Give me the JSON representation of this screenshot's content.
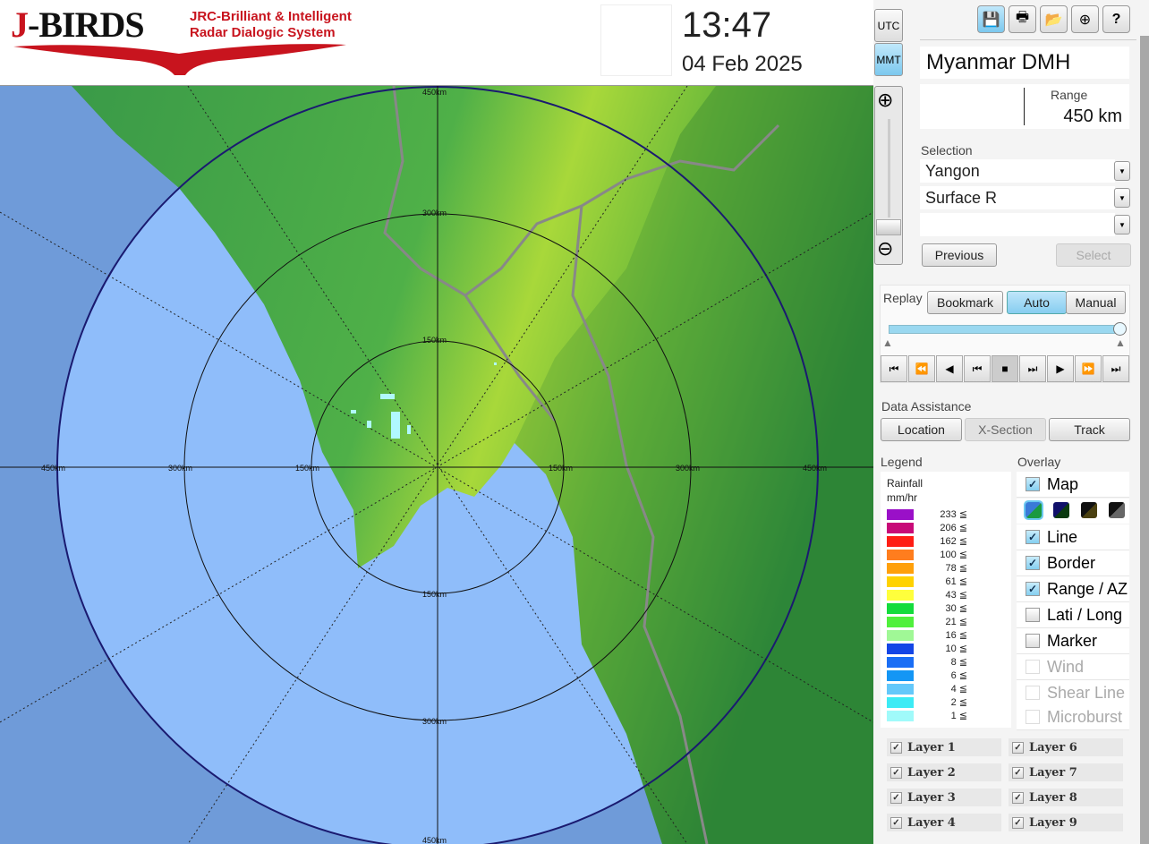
{
  "header": {
    "logo_main": "J-BIRDS",
    "logo_j": "J",
    "logo_rest": "-BIRDS",
    "logo_sub1": "JRC-Brilliant & Intelligent",
    "logo_sub2": "Radar Dialogic System",
    "time": "13:47",
    "date": "04 Feb 2025",
    "tz_utc": "UTC",
    "tz_mmt": "MMT",
    "tz_active": "MMT"
  },
  "toolbar": {
    "icons": [
      "save-icon",
      "print-icon",
      "folder-open-icon",
      "add-window-icon",
      "help-icon"
    ],
    "help_label": "?"
  },
  "station": {
    "name": "Myanmar DMH",
    "range_label": "Range",
    "range_value": "450 km"
  },
  "selection": {
    "label": "Selection",
    "site": "Yangon",
    "product": "Surface R",
    "third": "",
    "previous": "Previous",
    "select": "Select"
  },
  "replay": {
    "label": "Replay",
    "bookmark": "Bookmark",
    "auto": "Auto",
    "manual": "Manual",
    "mode": "Auto",
    "progress": 1.0,
    "controls": [
      "⏮",
      "⏪",
      "◀",
      "⏮",
      "■",
      "⏭",
      "▶",
      "⏩",
      "⏭"
    ]
  },
  "data_assistance": {
    "label": "Data Assistance",
    "location": "Location",
    "xsection": "X-Section",
    "track": "Track"
  },
  "legend": {
    "label": "Legend",
    "title1": "Rainfall",
    "title2": "mm/hr",
    "items": [
      {
        "v": "233 ≦",
        "c": "#9a10c8"
      },
      {
        "v": "206 ≦",
        "c": "#c80a78"
      },
      {
        "v": "162 ≦",
        "c": "#ff1e14"
      },
      {
        "v": "100 ≦",
        "c": "#ff7d1e"
      },
      {
        "v": "78 ≦",
        "c": "#ffa00a"
      },
      {
        "v": "61 ≦",
        "c": "#ffd200"
      },
      {
        "v": "43 ≦",
        "c": "#ffff3c"
      },
      {
        "v": "30 ≦",
        "c": "#14dc3c"
      },
      {
        "v": "21 ≦",
        "c": "#50f03c"
      },
      {
        "v": "16 ≦",
        "c": "#a0f896"
      },
      {
        "v": "10 ≦",
        "c": "#1446e6"
      },
      {
        "v": "8 ≦",
        "c": "#1a6ef5"
      },
      {
        "v": "6 ≦",
        "c": "#1496f5"
      },
      {
        "v": "4 ≦",
        "c": "#64c8fa"
      },
      {
        "v": "2 ≦",
        "c": "#3cebf5"
      },
      {
        "v": "1 ≦",
        "c": "#a0fafa"
      }
    ]
  },
  "overlay": {
    "label": "Overlay",
    "items": [
      {
        "label": "Map",
        "checked": true,
        "enabled": true
      },
      {
        "label": "Line",
        "checked": true,
        "enabled": true
      },
      {
        "label": "Border",
        "checked": true,
        "enabled": true
      },
      {
        "label": "Range / AZ",
        "checked": true,
        "enabled": true
      },
      {
        "label": "Lati / Long",
        "checked": false,
        "enabled": true
      },
      {
        "label": "Marker",
        "checked": false,
        "enabled": true
      },
      {
        "label": "Wind",
        "checked": false,
        "enabled": false
      },
      {
        "label": "Shear Line",
        "checked": false,
        "enabled": false
      },
      {
        "label": "Microburst",
        "checked": false,
        "enabled": false
      }
    ],
    "map_styles": [
      "color",
      "dark-blue",
      "dark-olive",
      "dark-gray"
    ]
  },
  "layers": [
    "Layer 1",
    "Layer 2",
    "Layer 3",
    "Layer 4",
    "Layer 6",
    "Layer 7",
    "Layer 8",
    "Layer 9"
  ],
  "map": {
    "ring_labels": [
      "150km",
      "300km",
      "450km"
    ],
    "left_labels": [
      "450km",
      "300km",
      "150km"
    ],
    "right_labels": [
      "150km",
      "300km",
      "450km"
    ],
    "top_labels": [
      "450km",
      "300km",
      "150km"
    ],
    "bottom_labels": [
      "150km",
      "300km",
      "450km"
    ]
  }
}
